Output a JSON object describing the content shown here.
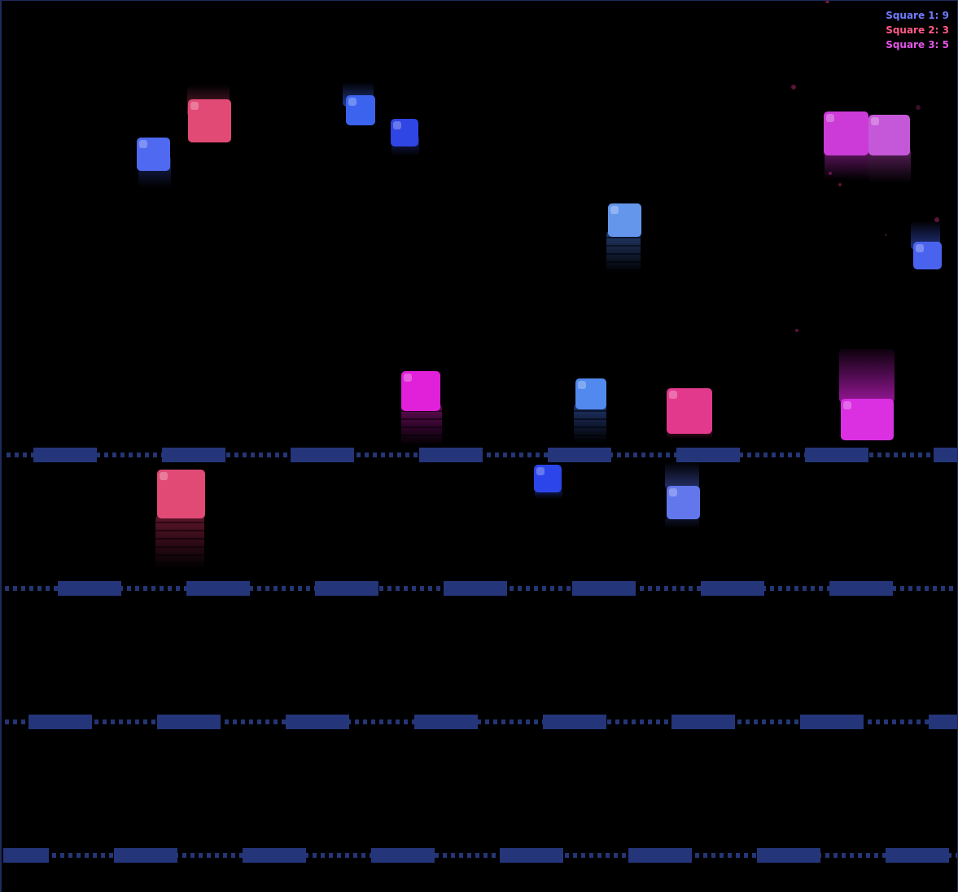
{
  "scoreboard": {
    "entries": [
      {
        "label": "Square 1",
        "score": "9",
        "color": "#6f7dff"
      },
      {
        "label": "Square 2",
        "score": "3",
        "color": "#ff5b86"
      },
      {
        "label": "Square 3",
        "score": "5",
        "color": "#e455e8"
      }
    ]
  },
  "players": {
    "square_1": {
      "color": "#4f6af0"
    },
    "square_2": {
      "color": "#e04a74"
    },
    "square_3": {
      "color": "#e030e0"
    }
  },
  "colors": {
    "background": "#000000",
    "platform": "#25357a",
    "dotted_track": "#243675",
    "border": "#1f2a5c"
  }
}
